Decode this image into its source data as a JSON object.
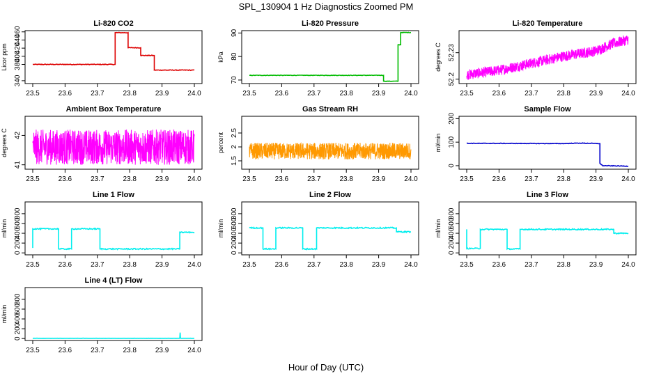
{
  "figure": {
    "title": "SPL_130904  1 Hz Diagnostics Zoomed PM",
    "xlabel": "Hour of Day (UTC)"
  },
  "chart_data": [
    {
      "type": "line",
      "title": "Li-820 CO2",
      "ylabel": "Licor ppm",
      "color": "#dd0000",
      "xlim": [
        23.5,
        24.0
      ],
      "ylim": [
        333,
        463
      ],
      "xticks": [
        "23.5",
        "23.6",
        "23.7",
        "23.8",
        "23.9",
        "24.0"
      ],
      "yticks": [
        340,
        380,
        400,
        420,
        440,
        460
      ],
      "x": [
        23.5,
        23.755,
        23.755,
        23.795,
        23.795,
        23.834,
        23.834,
        23.876,
        23.876,
        24.0
      ],
      "y": [
        380,
        380,
        458,
        458,
        421,
        421,
        402,
        402,
        366,
        366
      ],
      "noise": 0.8
    },
    {
      "type": "line",
      "title": "Li-820 Pressure",
      "ylabel": "kPa",
      "color": "#00bb00",
      "xlim": [
        23.5,
        24.0
      ],
      "ylim": [
        68.5,
        91
      ],
      "xticks": [
        "23.5",
        "23.6",
        "23.7",
        "23.8",
        "23.9",
        "24.0"
      ],
      "yticks": [
        70,
        80,
        90
      ],
      "x": [
        23.5,
        23.915,
        23.915,
        23.96,
        23.96,
        23.968,
        23.968,
        24.0
      ],
      "y": [
        72,
        72,
        69.5,
        69.5,
        85,
        85,
        90.2,
        90.2
      ],
      "noise": 0.1
    },
    {
      "type": "band",
      "title": "Li-820 Temperature",
      "ylabel": "degrees C",
      "color": "#ff00ff",
      "xlim": [
        23.5,
        24.0
      ],
      "ylim": [
        52.195,
        52.255
      ],
      "xticks": [
        "23.5",
        "23.6",
        "23.7",
        "23.8",
        "23.9",
        "24.0"
      ],
      "yticks": [
        52.2,
        52.23
      ],
      "x": [
        23.5,
        23.6,
        23.7,
        23.8,
        23.9,
        23.95,
        24.0
      ],
      "y": [
        52.205,
        52.21,
        52.218,
        52.226,
        52.232,
        52.24,
        52.245
      ],
      "noise": 0.006
    },
    {
      "type": "band",
      "title": "Ambient Box Temperature",
      "ylabel": "degrees C",
      "color": "#ff00ff",
      "xlim": [
        23.5,
        24.0
      ],
      "ylim": [
        40.85,
        42.65
      ],
      "xticks": [
        "23.5",
        "23.6",
        "23.7",
        "23.8",
        "23.9",
        "24.0"
      ],
      "yticks": [
        41.0,
        42.0
      ],
      "x": [
        23.5,
        24.0
      ],
      "y": [
        41.6,
        41.6
      ],
      "noise": 0.6
    },
    {
      "type": "band",
      "title": "Gas Stream RH",
      "ylabel": "percent",
      "color": "#ff9900",
      "xlim": [
        23.5,
        24.0
      ],
      "ylim": [
        1.2,
        3.1
      ],
      "xticks": [
        "23.5",
        "23.6",
        "23.7",
        "23.8",
        "23.9",
        "24.0"
      ],
      "yticks": [
        1.5,
        2.0,
        2.5
      ],
      "x": [
        23.5,
        24.0
      ],
      "y": [
        1.85,
        1.85
      ],
      "noise": 0.3
    },
    {
      "type": "line",
      "title": "Sample Flow",
      "ylabel": "ml/min",
      "color": "#0000cc",
      "xlim": [
        23.5,
        24.0
      ],
      "ylim": [
        -15,
        210
      ],
      "xticks": [
        "23.5",
        "23.6",
        "23.7",
        "23.8",
        "23.9",
        "24.0"
      ],
      "yticks": [
        0,
        100,
        200
      ],
      "x": [
        23.5,
        23.8,
        23.85,
        23.912,
        23.912,
        23.92,
        24.0
      ],
      "y": [
        95,
        94,
        96,
        94,
        10,
        0,
        -2
      ],
      "noise": 1.2
    },
    {
      "type": "line",
      "title": "Line 1 Flow",
      "ylabel": "ml/min",
      "color": "#00eeee",
      "xlim": [
        23.5,
        24.0
      ],
      "ylim": [
        -40,
        1040
      ],
      "xticks": [
        "23.5",
        "23.6",
        "23.7",
        "23.8",
        "23.9",
        "24.0"
      ],
      "yticks": [
        0,
        200,
        400,
        600,
        800
      ],
      "x": [
        23.5,
        23.5,
        23.58,
        23.58,
        23.62,
        23.62,
        23.708,
        23.708,
        23.955,
        23.955,
        24.0
      ],
      "y": [
        100,
        490,
        490,
        80,
        80,
        490,
        490,
        80,
        80,
        420,
        420
      ],
      "noise": 12
    },
    {
      "type": "line",
      "title": "Line 2 Flow",
      "ylabel": "ml/min",
      "color": "#00eeee",
      "xlim": [
        23.5,
        24.0
      ],
      "ylim": [
        -40,
        1040
      ],
      "xticks": [
        "23.5",
        "23.6",
        "23.7",
        "23.8",
        "23.9",
        "24.0"
      ],
      "yticks": [
        0,
        200,
        400,
        600,
        800
      ],
      "x": [
        23.5,
        23.542,
        23.542,
        23.582,
        23.582,
        23.665,
        23.665,
        23.708,
        23.708,
        23.955,
        23.955,
        24.0
      ],
      "y": [
        510,
        510,
        80,
        80,
        510,
        510,
        80,
        80,
        510,
        510,
        430,
        430
      ],
      "noise": 12
    },
    {
      "type": "line",
      "title": "Line 3 Flow",
      "ylabel": "ml/min",
      "color": "#00eeee",
      "xlim": [
        23.5,
        24.0
      ],
      "ylim": [
        -40,
        1040
      ],
      "xticks": [
        "23.5",
        "23.6",
        "23.7",
        "23.8",
        "23.9",
        "24.0"
      ],
      "yticks": [
        0,
        200,
        400,
        600,
        800
      ],
      "x": [
        23.5,
        23.5,
        23.5,
        23.542,
        23.542,
        23.625,
        23.625,
        23.665,
        23.665,
        23.955,
        23.955,
        24.0
      ],
      "y": [
        480,
        100,
        90,
        90,
        480,
        480,
        80,
        80,
        480,
        480,
        400,
        400
      ],
      "noise": 12
    },
    {
      "type": "line",
      "title": "Line 4 (LT) Flow",
      "ylabel": "ml/min",
      "color": "#00eeee",
      "xlim": [
        23.5,
        24.0
      ],
      "ylim": [
        -40,
        1040
      ],
      "xticks": [
        "23.5",
        "23.6",
        "23.7",
        "23.8",
        "23.9",
        "24.0"
      ],
      "yticks": [
        0,
        200,
        400,
        600,
        800
      ],
      "x": [
        23.5,
        23.955,
        23.956,
        23.957,
        23.958,
        24.0
      ],
      "y": [
        5,
        5,
        120,
        20,
        5,
        5
      ],
      "noise": 1.5
    }
  ]
}
